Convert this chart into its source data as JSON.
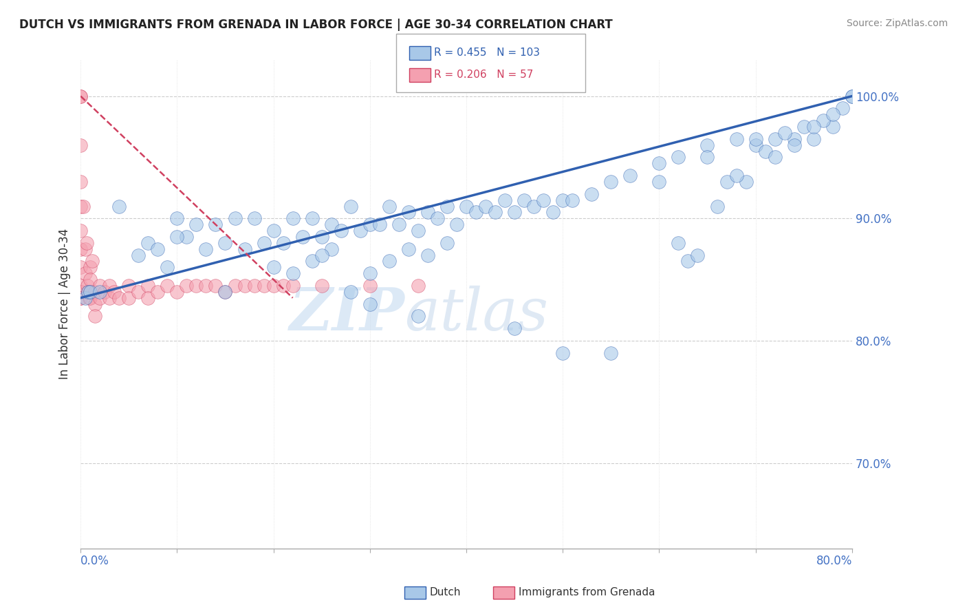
{
  "title": "DUTCH VS IMMIGRANTS FROM GRENADA IN LABOR FORCE | AGE 30-34 CORRELATION CHART",
  "source": "Source: ZipAtlas.com",
  "ylabel": "In Labor Force | Age 30-34",
  "xlim": [
    0.0,
    0.8
  ],
  "ylim": [
    0.63,
    1.03
  ],
  "blue_R": 0.455,
  "blue_N": 103,
  "pink_R": 0.206,
  "pink_N": 57,
  "legend_label_blue": "Dutch",
  "legend_label_pink": "Immigrants from Grenada",
  "watermark_zip": "ZIP",
  "watermark_atlas": "atlas",
  "dot_color_blue": "#a8c8e8",
  "dot_color_pink": "#f4a0b0",
  "line_color_blue": "#3060b0",
  "line_color_pink": "#d04060",
  "background_color": "#ffffff",
  "blue_x": [
    0.005,
    0.008,
    0.01,
    0.02,
    0.04,
    0.06,
    0.07,
    0.08,
    0.09,
    0.1,
    0.11,
    0.12,
    0.13,
    0.14,
    0.15,
    0.16,
    0.17,
    0.18,
    0.19,
    0.2,
    0.21,
    0.22,
    0.23,
    0.24,
    0.25,
    0.26,
    0.27,
    0.28,
    0.29,
    0.3,
    0.31,
    0.32,
    0.33,
    0.34,
    0.35,
    0.36,
    0.37,
    0.38,
    0.39,
    0.4,
    0.28,
    0.3,
    0.32,
    0.34,
    0.36,
    0.38,
    0.22,
    0.24,
    0.26,
    0.41,
    0.42,
    0.43,
    0.44,
    0.45,
    0.46,
    0.47,
    0.48,
    0.49,
    0.5,
    0.51,
    0.53,
    0.55,
    0.57,
    0.6,
    0.62,
    0.65,
    0.68,
    0.7,
    0.72,
    0.74,
    0.76,
    0.78,
    0.8,
    0.55,
    0.5,
    0.45,
    0.35,
    0.3,
    0.2,
    0.1,
    0.15,
    0.25,
    0.6,
    0.65,
    0.7,
    0.73,
    0.75,
    0.77,
    0.79,
    0.62,
    0.66,
    0.69,
    0.71,
    0.63,
    0.67,
    0.74,
    0.76,
    0.64,
    0.68,
    0.72,
    0.78,
    0.8
  ],
  "blue_y": [
    0.835,
    0.84,
    0.84,
    0.84,
    0.91,
    0.87,
    0.88,
    0.875,
    0.86,
    0.9,
    0.885,
    0.895,
    0.875,
    0.895,
    0.88,
    0.9,
    0.875,
    0.9,
    0.88,
    0.89,
    0.88,
    0.9,
    0.885,
    0.9,
    0.885,
    0.895,
    0.89,
    0.91,
    0.89,
    0.895,
    0.895,
    0.91,
    0.895,
    0.905,
    0.89,
    0.905,
    0.9,
    0.91,
    0.895,
    0.91,
    0.84,
    0.855,
    0.865,
    0.875,
    0.87,
    0.88,
    0.855,
    0.865,
    0.875,
    0.905,
    0.91,
    0.905,
    0.915,
    0.905,
    0.915,
    0.91,
    0.915,
    0.905,
    0.915,
    0.915,
    0.92,
    0.93,
    0.935,
    0.945,
    0.95,
    0.96,
    0.965,
    0.96,
    0.965,
    0.965,
    0.965,
    0.975,
    1.0,
    0.79,
    0.79,
    0.81,
    0.82,
    0.83,
    0.86,
    0.885,
    0.84,
    0.87,
    0.93,
    0.95,
    0.965,
    0.97,
    0.975,
    0.98,
    0.99,
    0.88,
    0.91,
    0.93,
    0.955,
    0.865,
    0.93,
    0.96,
    0.975,
    0.87,
    0.935,
    0.95,
    0.985,
    1.0
  ],
  "pink_x": [
    0.0,
    0.0,
    0.0,
    0.0,
    0.0,
    0.0,
    0.0,
    0.0,
    0.0,
    0.0,
    0.0,
    0.0,
    0.005,
    0.005,
    0.007,
    0.008,
    0.009,
    0.01,
    0.01,
    0.01,
    0.01,
    0.015,
    0.015,
    0.015,
    0.02,
    0.02,
    0.025,
    0.03,
    0.03,
    0.035,
    0.04,
    0.05,
    0.05,
    0.06,
    0.07,
    0.07,
    0.08,
    0.09,
    0.1,
    0.11,
    0.12,
    0.13,
    0.14,
    0.15,
    0.16,
    0.17,
    0.18,
    0.19,
    0.2,
    0.21,
    0.22,
    0.25,
    0.3,
    0.35,
    0.003,
    0.006,
    0.012
  ],
  "pink_y": [
    1.0,
    1.0,
    0.96,
    0.93,
    0.91,
    0.89,
    0.875,
    0.86,
    0.845,
    0.84,
    0.835,
    0.835,
    0.875,
    0.855,
    0.845,
    0.84,
    0.835,
    0.86,
    0.85,
    0.84,
    0.835,
    0.84,
    0.83,
    0.82,
    0.845,
    0.835,
    0.84,
    0.845,
    0.835,
    0.84,
    0.835,
    0.845,
    0.835,
    0.84,
    0.845,
    0.835,
    0.84,
    0.845,
    0.84,
    0.845,
    0.845,
    0.845,
    0.845,
    0.84,
    0.845,
    0.845,
    0.845,
    0.845,
    0.845,
    0.845,
    0.845,
    0.845,
    0.845,
    0.845,
    0.91,
    0.88,
    0.865
  ],
  "pink_line_x": [
    0.0,
    0.22
  ],
  "pink_line_y": [
    1.0,
    0.835
  ],
  "blue_line_x": [
    0.0,
    0.8
  ],
  "blue_line_y": [
    0.835,
    1.0
  ]
}
